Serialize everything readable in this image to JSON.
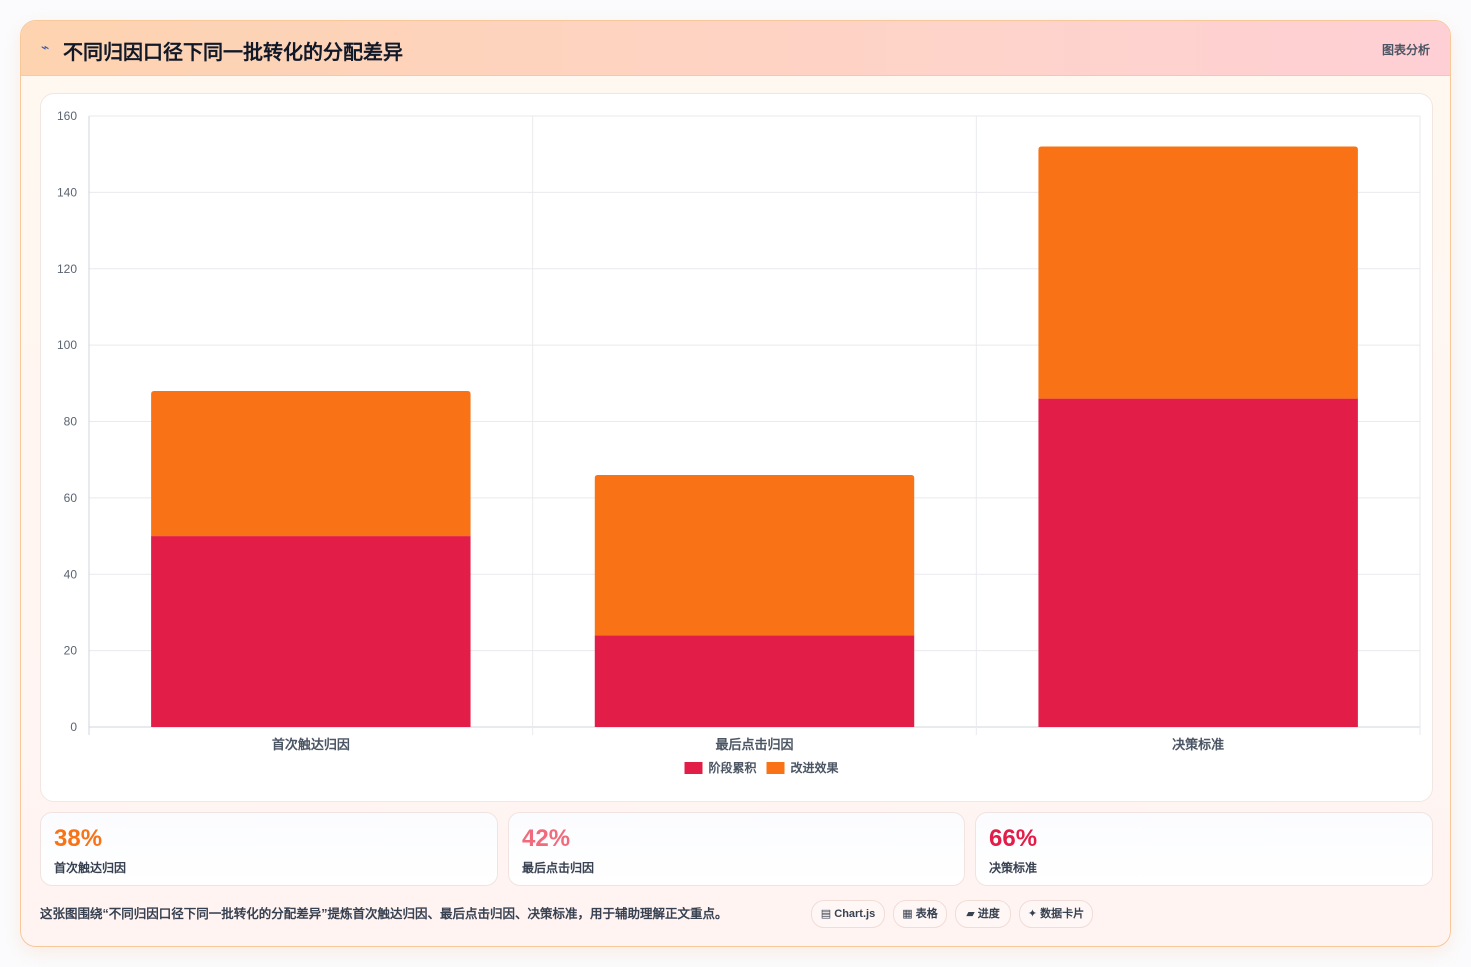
{
  "header": {
    "icon": "trend-line-icon",
    "title": "不同归因口径下同一批转化的分配差异",
    "badge": "图表分析"
  },
  "chart_data": {
    "type": "bar",
    "stacked": true,
    "categories": [
      "首次触达归因",
      "最后点击归因",
      "决策标准"
    ],
    "series": [
      {
        "name": "阶段累积",
        "color": "#e11d48",
        "values": [
          50,
          24,
          86
        ]
      },
      {
        "name": "改进效果",
        "color": "#f97316",
        "values": [
          38,
          42,
          66
        ]
      }
    ],
    "ylim": [
      0,
      160
    ],
    "yticks": [
      0,
      20,
      40,
      60,
      80,
      100,
      120,
      140,
      160
    ],
    "grid": true,
    "legend": "bottom"
  },
  "stats": [
    {
      "value": "38%",
      "label": "首次触达归因",
      "color": "#f97316"
    },
    {
      "value": "42%",
      "label": "最后点击归因",
      "color": "#f26b7c"
    },
    {
      "value": "66%",
      "label": "决策标准",
      "color": "#e11d48"
    }
  ],
  "footnote": "这张图围绕“不同归因口径下同一批转化的分配差异”提炼首次触达归因、最后点击归因、决策标准，用于辅助理解正文重点。",
  "chips": [
    {
      "icon": "chart-icon",
      "glyph": "▤",
      "label": "Chart.js"
    },
    {
      "icon": "table-icon",
      "glyph": "▦",
      "label": "表格"
    },
    {
      "icon": "progress-icon",
      "glyph": "▰",
      "label": "进度"
    },
    {
      "icon": "data-card-icon",
      "glyph": "✦",
      "label": "数据卡片"
    }
  ]
}
